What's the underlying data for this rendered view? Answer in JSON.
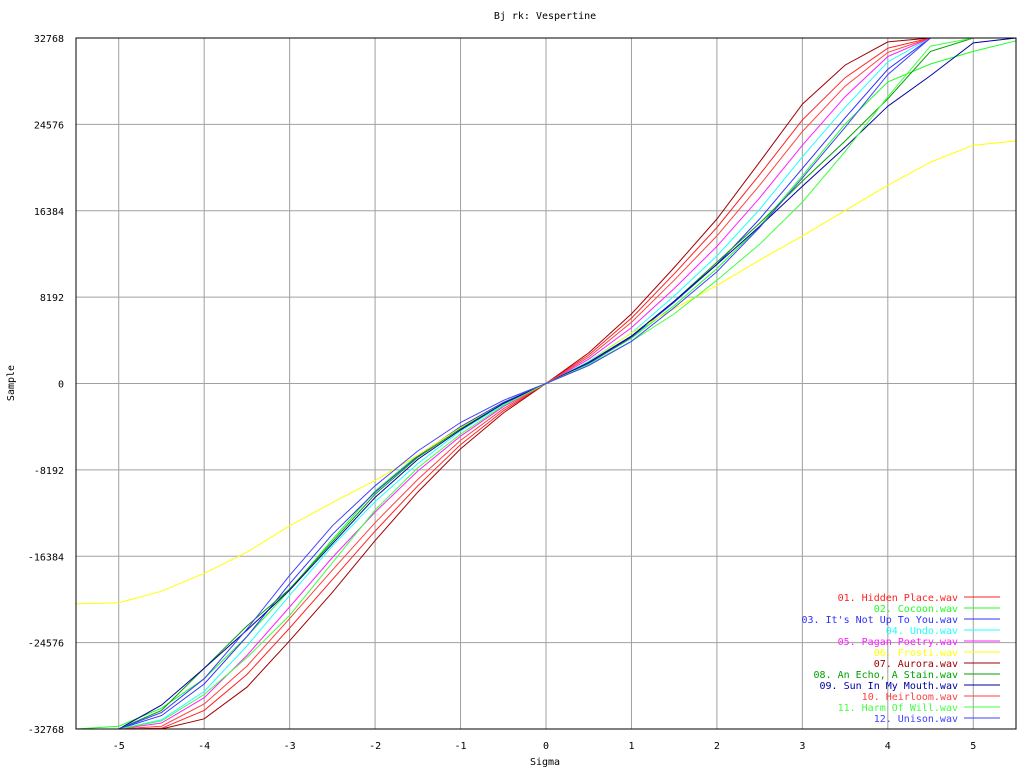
{
  "chart_data": {
    "type": "line",
    "title": "Bj rk: Vespertine",
    "xlabel": "Sigma",
    "ylabel": "Sample",
    "xlim": [
      -5.5,
      5.5
    ],
    "ylim": [
      -32768,
      32768
    ],
    "xticks": [
      -5,
      -4,
      -3,
      -2,
      -1,
      0,
      1,
      2,
      3,
      4,
      5
    ],
    "yticks": [
      -32768,
      -24576,
      -16384,
      -8192,
      0,
      8192,
      16384,
      24576,
      32768
    ],
    "grid": true,
    "legend_position": "bottom-right",
    "x": [
      -5.5,
      -5,
      -4.5,
      -4,
      -3.5,
      -3,
      -2.5,
      -2,
      -1.5,
      -1,
      -0.5,
      0,
      0.5,
      1,
      1.5,
      2,
      2.5,
      3,
      3.5,
      4,
      4.5,
      5,
      5.5
    ],
    "series": [
      {
        "name": "01. Hidden Place.wav",
        "color": "#ff2020",
        "values": [
          -32768,
          -32768,
          -32700,
          -31000,
          -27600,
          -23200,
          -18600,
          -14000,
          -9700,
          -5800,
          -2600,
          0,
          2700,
          6200,
          10400,
          14800,
          19800,
          25000,
          29000,
          31800,
          32768,
          32768,
          32768
        ]
      },
      {
        "name": "02. Cocoon.wav",
        "color": "#20ff20",
        "values": [
          -32768,
          -32500,
          -30800,
          -28000,
          -24000,
          -19600,
          -14800,
          -10200,
          -6800,
          -4200,
          -1800,
          0,
          1900,
          4300,
          7400,
          10900,
          14900,
          19700,
          24600,
          28600,
          30300,
          31500,
          32500
        ]
      },
      {
        "name": "03. It's Not Up To You.wav",
        "color": "#3030ff",
        "values": [
          -32768,
          -32768,
          -31500,
          -28500,
          -24000,
          -19000,
          -14300,
          -10300,
          -6900,
          -4100,
          -1800,
          0,
          1900,
          4400,
          7700,
          11300,
          15600,
          20400,
          25200,
          29800,
          32768,
          32768,
          32768
        ]
      },
      {
        "name": "04. Undo.wav",
        "color": "#20ffff",
        "values": [
          -32768,
          -32768,
          -31900,
          -29200,
          -24900,
          -20100,
          -15400,
          -11200,
          -7600,
          -4500,
          -2000,
          0,
          2100,
          4800,
          8300,
          12100,
          16500,
          21500,
          26200,
          30500,
          32768,
          32768,
          32768
        ]
      },
      {
        "name": "05. Pagan Poetry.wav",
        "color": "#ff20ff",
        "values": [
          -32768,
          -32768,
          -32200,
          -29800,
          -25800,
          -21200,
          -16500,
          -12200,
          -8300,
          -5000,
          -2200,
          0,
          2300,
          5300,
          9000,
          13000,
          17600,
          22600,
          27200,
          31000,
          32768,
          32768,
          32768
        ]
      },
      {
        "name": "06. Frosti.wav",
        "color": "#ffff00",
        "values": [
          -20900,
          -20800,
          -19700,
          -18000,
          -16000,
          -13500,
          -11300,
          -9200,
          -6800,
          -4200,
          -1900,
          0,
          2000,
          4800,
          7100,
          9300,
          11700,
          14000,
          16400,
          18800,
          21000,
          22600,
          23000
        ]
      },
      {
        "name": "07. Aurora.wav",
        "color": "#a00000",
        "values": [
          -32768,
          -32768,
          -32768,
          -31800,
          -28800,
          -24400,
          -19800,
          -14900,
          -10300,
          -6200,
          -2800,
          0,
          2900,
          6600,
          11000,
          15600,
          21000,
          26500,
          30200,
          32400,
          32768,
          32768,
          32768
        ]
      },
      {
        "name": "08. An Echo, A Stain.wav",
        "color": "#00a000",
        "values": [
          -32768,
          -32768,
          -31000,
          -27000,
          -23000,
          -19500,
          -15000,
          -10500,
          -7000,
          -4300,
          -1900,
          0,
          2000,
          4500,
          7800,
          11500,
          15200,
          19200,
          23000,
          27000,
          31500,
          32768,
          32768
        ]
      },
      {
        "name": "09. Sun In My Mouth.wav",
        "color": "#0000a0",
        "values": [
          -32768,
          -32768,
          -30500,
          -27000,
          -23400,
          -19600,
          -15200,
          -10800,
          -7200,
          -4400,
          -1900,
          0,
          2000,
          4500,
          7800,
          11300,
          14900,
          18700,
          22400,
          26300,
          29200,
          32300,
          32768
        ]
      },
      {
        "name": "10. Heirloom.wav",
        "color": "#ff4040",
        "values": [
          -32768,
          -32768,
          -32500,
          -30400,
          -26800,
          -22300,
          -17700,
          -13200,
          -9100,
          -5400,
          -2400,
          0,
          2500,
          5800,
          9800,
          14000,
          18800,
          23900,
          28200,
          31400,
          32768,
          32768,
          32768
        ]
      },
      {
        "name": "11. Harm Of Will.wav",
        "color": "#40ff40",
        "values": [
          -32768,
          -32768,
          -32000,
          -29500,
          -26000,
          -22000,
          -17000,
          -12000,
          -8000,
          -4800,
          -2100,
          0,
          1800,
          4000,
          6600,
          9800,
          13200,
          17200,
          22000,
          27200,
          32000,
          32768,
          32768
        ]
      },
      {
        "name": "12. Unison.wav",
        "color": "#4040ff",
        "values": [
          -32768,
          -32768,
          -31200,
          -28000,
          -23300,
          -18200,
          -13500,
          -9700,
          -6400,
          -3700,
          -1600,
          0,
          1700,
          4000,
          7200,
          10600,
          14800,
          19500,
          24300,
          29300,
          32768,
          32768,
          32768
        ]
      }
    ]
  }
}
